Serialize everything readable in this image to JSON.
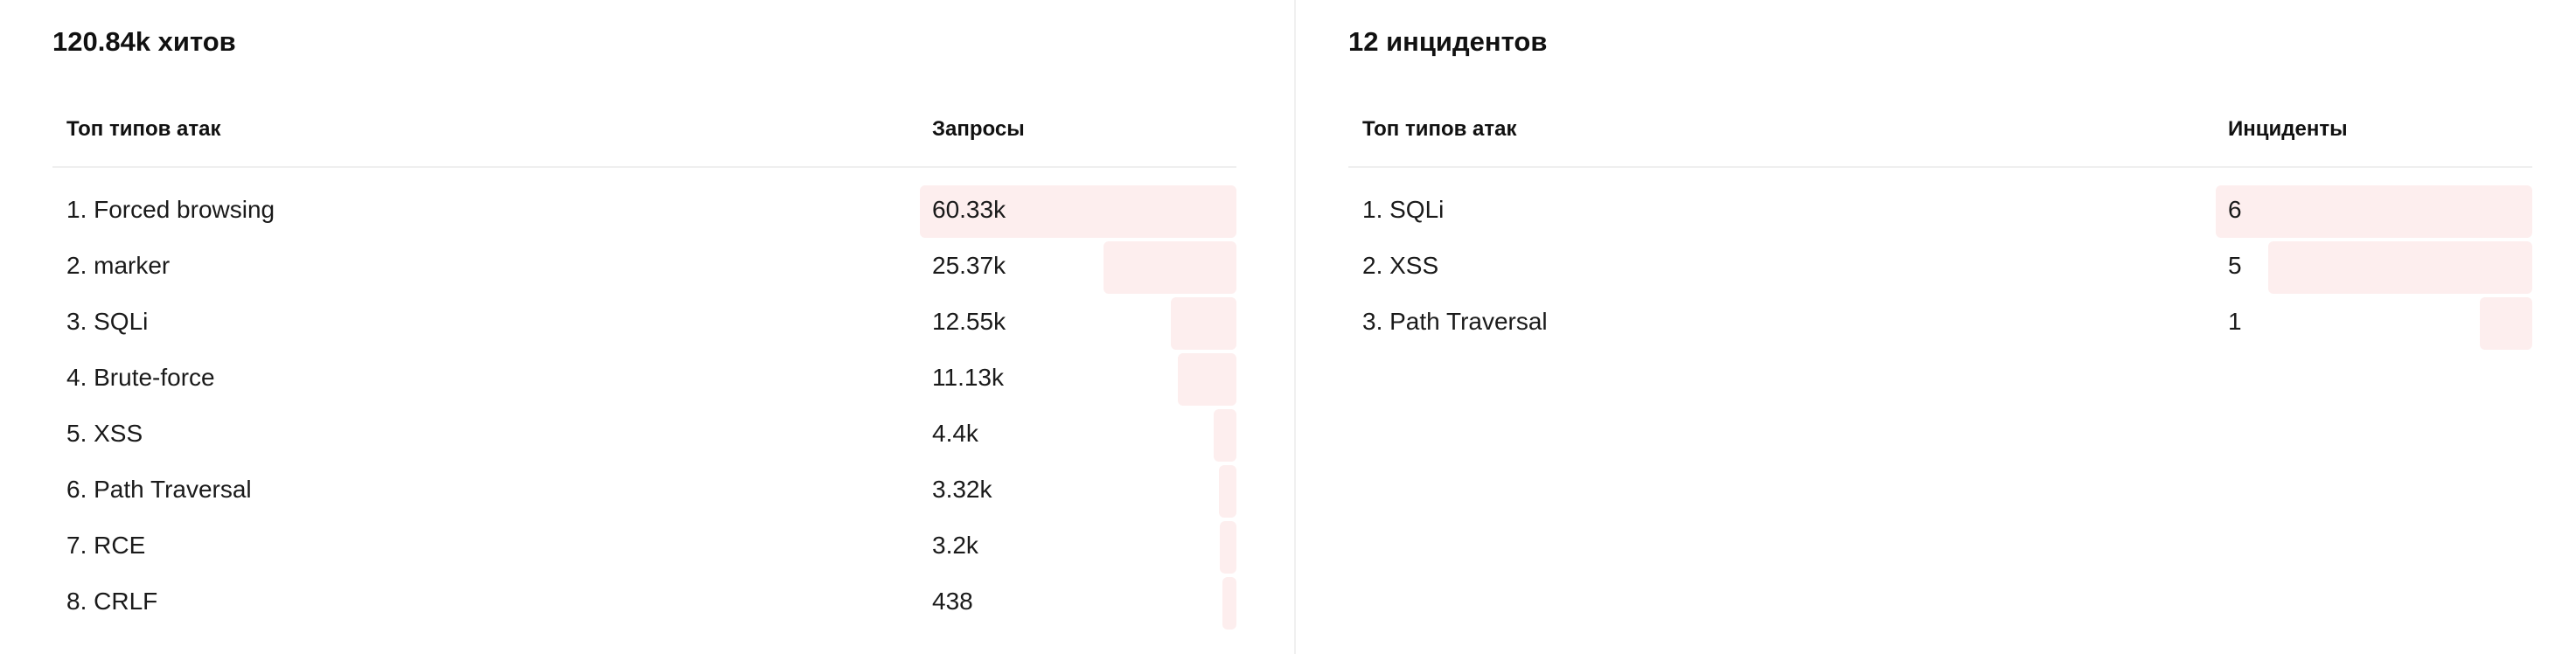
{
  "colors": {
    "bar": "#fdeeee"
  },
  "left_panel": {
    "title": "120.84k хитов",
    "headers": {
      "name": "Топ типов атак",
      "value": "Запросы"
    },
    "rows": [
      {
        "name": "1. Forced browsing",
        "value": "60.33k",
        "fraction": 1.0
      },
      {
        "name": "2. marker",
        "value": "25.37k",
        "fraction": 0.4205
      },
      {
        "name": "3. SQLi",
        "value": "12.55k",
        "fraction": 0.208
      },
      {
        "name": "4. Brute-force",
        "value": "11.13k",
        "fraction": 0.1845
      },
      {
        "name": "5. XSS",
        "value": "4.4k",
        "fraction": 0.0729
      },
      {
        "name": "6. Path Traversal",
        "value": "3.32k",
        "fraction": 0.055
      },
      {
        "name": "7. RCE",
        "value": "3.2k",
        "fraction": 0.053
      },
      {
        "name": "8. CRLF",
        "value": "438",
        "fraction": 0.0073
      }
    ]
  },
  "right_panel": {
    "title": "12 инцидентов",
    "headers": {
      "name": "Топ типов атак",
      "value": "Инциденты"
    },
    "rows": [
      {
        "name": "1. SQLi",
        "value": "6",
        "fraction": 1.0
      },
      {
        "name": "2. XSS",
        "value": "5",
        "fraction": 0.8333
      },
      {
        "name": "3. Path Traversal",
        "value": "1",
        "fraction": 0.1667
      }
    ]
  }
}
